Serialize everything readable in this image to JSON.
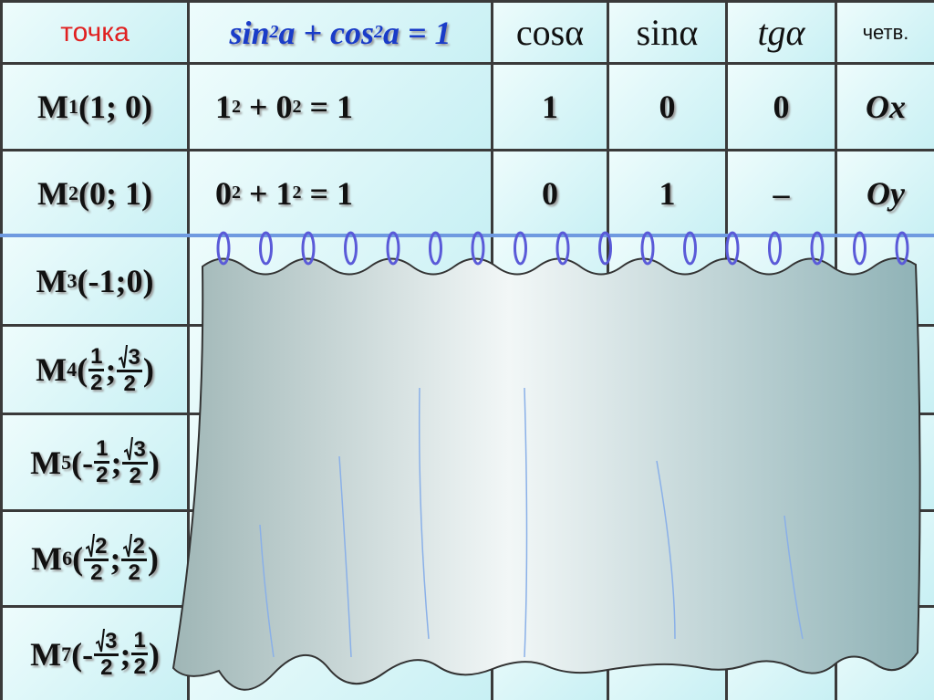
{
  "header": {
    "point": "точка",
    "formula": [
      {
        "t": "sin"
      },
      {
        "t": "2",
        "sup": true
      },
      {
        "t": "a + cos"
      },
      {
        "t": "2",
        "sup": true
      },
      {
        "t": "a = 1"
      }
    ],
    "cos": "cosα",
    "sin": "sinα",
    "tg": "tgα",
    "quarter": "четв."
  },
  "rows": [
    {
      "point": {
        "letter": "M",
        "index": "1",
        "coords": [
          "(1; 0)"
        ]
      },
      "formula": [
        {
          "t": "1"
        },
        {
          "t": "2",
          "sup": true
        },
        {
          "t": " + 0"
        },
        {
          "t": "2",
          "sup": true
        },
        {
          "t": " = 1"
        }
      ],
      "cos": "1",
      "sin": "0",
      "tg": "0",
      "quarter": "Ox"
    },
    {
      "point": {
        "letter": "M",
        "index": "2",
        "coords": [
          "(0; 1)"
        ]
      },
      "formula": [
        {
          "t": "0"
        },
        {
          "t": "2",
          "sup": true
        },
        {
          "t": " + 1"
        },
        {
          "t": "2",
          "sup": true
        },
        {
          "t": " = 1"
        }
      ],
      "cos": "0",
      "sin": "1",
      "tg": "–",
      "quarter": "Oy"
    },
    {
      "point": {
        "letter": "M",
        "index": "3",
        "coords": [
          "(-1;0)"
        ]
      }
    },
    {
      "point": {
        "letter": "M",
        "index": "4",
        "coords": [
          "(",
          {
            "num": "1",
            "den": "2"
          },
          ";",
          {
            "num": "3",
            "den": "2",
            "root": true
          },
          ")"
        ]
      }
    },
    {
      "point": {
        "letter": "M",
        "index": "5",
        "coords": [
          "(-",
          {
            "num": "1",
            "den": "2"
          },
          ";",
          {
            "num": "3",
            "den": "2",
            "root": true
          },
          ")"
        ]
      }
    },
    {
      "point": {
        "letter": "M",
        "index": "6",
        "coords": [
          "(",
          {
            "num": "2",
            "den": "2",
            "root": true
          },
          ";",
          {
            "num": "2",
            "den": "2",
            "root": true
          },
          ")"
        ]
      }
    },
    {
      "point": {
        "letter": "M",
        "index": "7",
        "coords": [
          "(-",
          {
            "num": "3",
            "den": "2",
            "root": true
          },
          ";",
          {
            "num": "1",
            "den": "2"
          },
          ")"
        ]
      }
    }
  ]
}
